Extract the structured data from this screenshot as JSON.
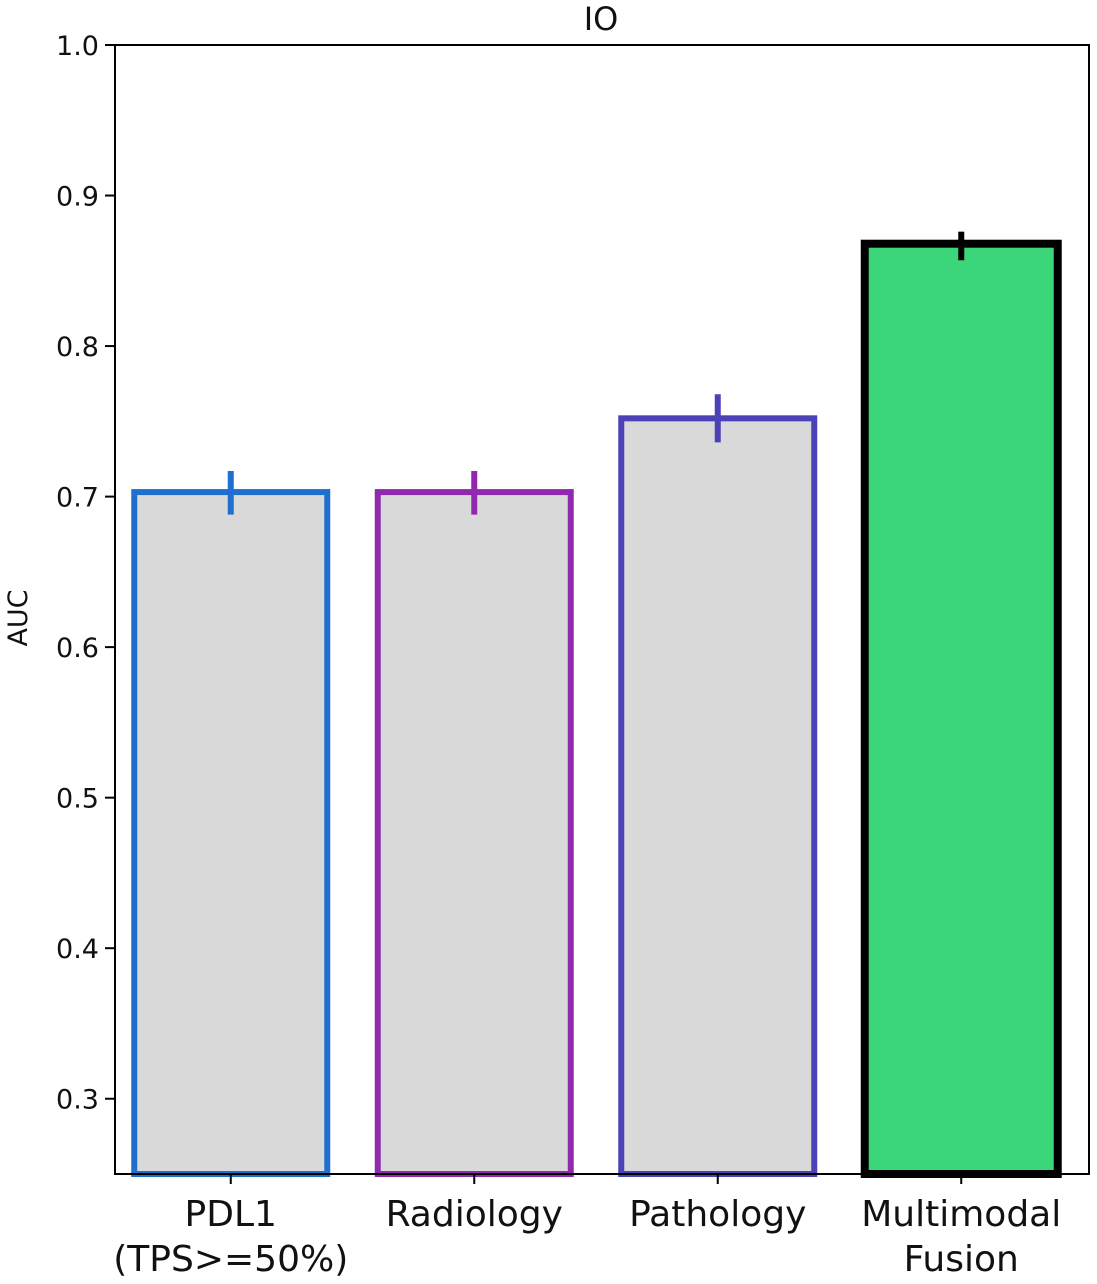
{
  "chart_data": {
    "type": "bar",
    "title": "IO",
    "xlabel": "",
    "ylabel": "AUC",
    "ylim": [
      0.25,
      1.0
    ],
    "yticks": [
      0.3,
      0.4,
      0.5,
      0.6,
      0.7,
      0.8,
      0.9,
      1.0
    ],
    "ytick_labels": [
      "0.3",
      "0.4",
      "0.5",
      "0.6",
      "0.7",
      "0.8",
      "0.9",
      "1.0"
    ],
    "categories": [
      [
        "PDL1",
        "(TPS>=50%)"
      ],
      [
        "Radiology"
      ],
      [
        "Pathology"
      ],
      [
        "Multimodal",
        "Fusion"
      ]
    ],
    "values": [
      0.703,
      0.703,
      0.752,
      0.868
    ],
    "error_low": [
      0.688,
      0.688,
      0.736,
      0.857
    ],
    "error_high": [
      0.717,
      0.717,
      0.768,
      0.876
    ],
    "fill_colors": [
      "#d9d9d9",
      "#d9d9d9",
      "#d9d9d9",
      "#3ad679"
    ],
    "edge_colors": [
      "#1f6fcf",
      "#9128b0",
      "#4b42b8",
      "#000000"
    ],
    "grid": false
  }
}
